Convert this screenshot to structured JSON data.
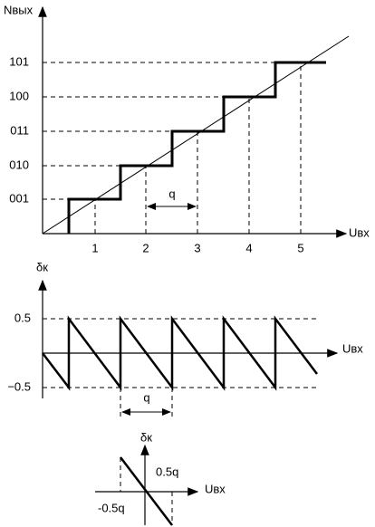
{
  "transfer": {
    "y_axis_label": "Nвых",
    "x_axis_label": "Uвх",
    "levels": [
      "001",
      "010",
      "011",
      "100",
      "101"
    ],
    "x_labels": [
      "1",
      "2",
      "3",
      "4",
      "5"
    ],
    "step_label": "q"
  },
  "error": {
    "y_axis_label": "δк",
    "x_axis_label": "Uвх",
    "upper_label": "0.5",
    "lower_label": "−0.5",
    "step_label": "q"
  },
  "single": {
    "y_axis_label": "δк",
    "x_axis_label": "Uвх",
    "upper_label": "0.5q",
    "lower_label": "-0.5q"
  }
}
